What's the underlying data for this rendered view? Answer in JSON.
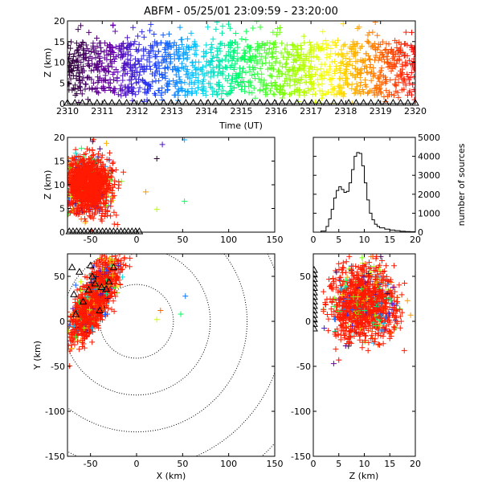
{
  "title": "ABFM - 05/25/01 23:09:59 - 23:20:00",
  "colors": {
    "sources": "#ff1a00",
    "stations": "#000000",
    "rainbow": [
      "#2a0030",
      "#6a00a8",
      "#1a3cff",
      "#00d0ff",
      "#00ff60",
      "#80ff00",
      "#ffff00",
      "#ff8000",
      "#ff0000"
    ]
  },
  "chart_data": [
    {
      "id": "time-height",
      "type": "scatter",
      "xlabel": "Time (UT)",
      "ylabel": "Z (km)",
      "xlim": [
        2310,
        2320
      ],
      "ylim": [
        0,
        20
      ],
      "xticks": [
        "2310",
        "2311",
        "2312",
        "2313",
        "2314",
        "2315",
        "2316",
        "2317",
        "2318",
        "2319",
        "2320"
      ],
      "yticks": [
        "0",
        "5",
        "10",
        "15",
        "20"
      ],
      "marker": "+ colored by time (rainbow)",
      "dense_band_z_km": [
        2,
        15
      ],
      "station_markers_z_km": 0
    },
    {
      "id": "x-z",
      "type": "scatter",
      "xlabel": "",
      "ylabel": "Z (km)",
      "xlim": [
        -75,
        150
      ],
      "ylim": [
        0,
        20
      ],
      "xticks": [
        "-50",
        "0",
        "50",
        "100",
        "150"
      ],
      "yticks": [
        "0",
        "5",
        "10",
        "15",
        "20"
      ],
      "cluster": {
        "x_km": [
          -75,
          5
        ],
        "z_km": [
          2,
          17
        ]
      },
      "outliers": [
        {
          "x": 22,
          "z": 15.5
        },
        {
          "x": 28,
          "z": 18.5
        },
        {
          "x": 52,
          "z": 19.5
        },
        {
          "x": 52,
          "z": 6.5
        },
        {
          "x": 22,
          "z": 4.8
        },
        {
          "x": 10,
          "z": 8.5
        }
      ]
    },
    {
      "id": "height-histogram",
      "type": "line",
      "xlabel": "",
      "ylabel": "number of sources",
      "xlim": [
        0,
        20
      ],
      "ylim": [
        0,
        5000
      ],
      "xticks": [
        "0",
        "5",
        "10",
        "15",
        "20"
      ],
      "yticks": [
        "0",
        "1000",
        "2000",
        "3000",
        "4000",
        "5000"
      ],
      "x": [
        0.5,
        1.5,
        2.5,
        3,
        3.5,
        4,
        4.5,
        5,
        5.5,
        6,
        6.5,
        7,
        7.5,
        8,
        8.5,
        9,
        9.5,
        10,
        10.5,
        11,
        11.5,
        12,
        12.5,
        13,
        14,
        15,
        16,
        17,
        18,
        19
      ],
      "values": [
        0,
        60,
        300,
        700,
        1200,
        1800,
        2200,
        2400,
        2250,
        2100,
        2150,
        2600,
        3300,
        4000,
        4200,
        4150,
        3500,
        2600,
        1700,
        1000,
        650,
        420,
        300,
        230,
        160,
        110,
        80,
        50,
        30,
        20
      ]
    },
    {
      "id": "plan-view",
      "type": "scatter",
      "xlabel": "X (km)",
      "ylabel": "Y (km)",
      "xlim": [
        -75,
        150
      ],
      "ylim": [
        -150,
        75
      ],
      "xticks": [
        "-50",
        "0",
        "50",
        "100",
        "150"
      ],
      "yticks": [
        "-150",
        "-100",
        "-50",
        "0",
        "50"
      ],
      "range_rings_km": [
        40,
        80,
        120,
        160,
        200
      ],
      "ring_center": [
        0,
        0
      ],
      "cluster": {
        "x_km": [
          -75,
          0
        ],
        "y_km": [
          -30,
          72
        ]
      },
      "outliers": [
        {
          "x": 53,
          "y": 28
        },
        {
          "x": 48,
          "y": 8
        },
        {
          "x": 22,
          "y": 2
        },
        {
          "x": 26,
          "y": 12
        }
      ]
    },
    {
      "id": "z-y",
      "type": "scatter",
      "xlabel": "Z (km)",
      "ylabel": "",
      "xlim": [
        0,
        20
      ],
      "ylim": [
        -150,
        75
      ],
      "xticks": [
        "0",
        "5",
        "10",
        "15",
        "20"
      ],
      "yticks": [
        "-150",
        "-100",
        "-50",
        "0",
        "50"
      ],
      "cluster": {
        "z_km": [
          2,
          19
        ],
        "y_km": [
          -35,
          72
        ]
      },
      "outliers": [
        {
          "z": 4,
          "y": -47
        },
        {
          "z": 5,
          "y": -43
        }
      ]
    }
  ]
}
